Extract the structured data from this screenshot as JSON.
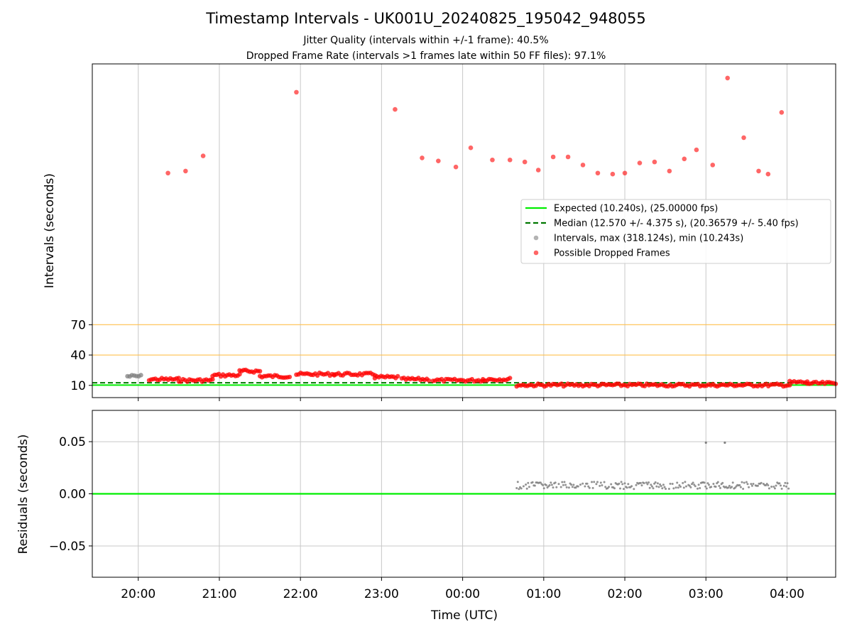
{
  "title": "Timestamp Intervals - UK001U_20240825_195042_948055",
  "subtitle_lines": [
    "Jitter Quality (intervals within +/-1 frame): 40.5%",
    "Dropped Frame Rate (intervals >1 frames late within 50 FF files): 97.1%"
  ],
  "colors": {
    "expected": "#00ee00",
    "median": "#007700",
    "intervals": "#808080",
    "dropped": "#ff0000",
    "threshold": "#ffc04d",
    "grid": "#c8c8c8"
  },
  "chart_data": [
    {
      "type": "scatter",
      "id": "intervals",
      "ylabel": "Intervals (seconds)",
      "yticks": [
        10,
        40,
        70
      ],
      "x_range": [
        "19:26",
        "04:36"
      ],
      "x_ticks": [
        "20:00",
        "21:00",
        "22:00",
        "23:00",
        "00:00",
        "01:00",
        "02:00",
        "03:00",
        "04:00"
      ],
      "grid": "vertical",
      "legend_position": "center-right",
      "legend": [
        {
          "name": "Expected (10.240s), (25.00000 fps)",
          "kind": "line",
          "color": "#00ee00"
        },
        {
          "name": "Median (12.570 +/- 4.375 s), (20.36579 +/- 5.40 fps)",
          "kind": "dashed",
          "color": "#007700"
        },
        {
          "name": "Intervals, max (318.124s), min (10.243s)",
          "kind": "dot",
          "color": "#808080"
        },
        {
          "name": "Possible Dropped Frames",
          "kind": "dot",
          "color": "#ff0000"
        }
      ],
      "reference_lines": {
        "expected": 10.24,
        "median": 12.57,
        "thresholds": [
          40,
          70
        ]
      },
      "high_points": [
        {
          "time": "20:22",
          "value": 220
        },
        {
          "time": "20:35",
          "value": 222
        },
        {
          "time": "20:48",
          "value": 237
        },
        {
          "time": "21:57",
          "value": 300
        },
        {
          "time": "23:10",
          "value": 283
        },
        {
          "time": "23:30",
          "value": 235
        },
        {
          "time": "23:42",
          "value": 232
        },
        {
          "time": "23:55",
          "value": 226
        },
        {
          "time": "00:06",
          "value": 245
        },
        {
          "time": "00:22",
          "value": 233
        },
        {
          "time": "00:35",
          "value": 233
        },
        {
          "time": "00:46",
          "value": 231
        },
        {
          "time": "00:56",
          "value": 223
        },
        {
          "time": "01:07",
          "value": 236
        },
        {
          "time": "01:18",
          "value": 236
        },
        {
          "time": "01:29",
          "value": 228
        },
        {
          "time": "01:40",
          "value": 220
        },
        {
          "time": "01:51",
          "value": 219
        },
        {
          "time": "02:00",
          "value": 220
        },
        {
          "time": "02:11",
          "value": 230
        },
        {
          "time": "02:22",
          "value": 231
        },
        {
          "time": "02:33",
          "value": 222
        },
        {
          "time": "02:44",
          "value": 234
        },
        {
          "time": "02:53",
          "value": 243
        },
        {
          "time": "03:05",
          "value": 228
        },
        {
          "time": "03:16",
          "value": 314
        },
        {
          "time": "03:28",
          "value": 255
        },
        {
          "time": "03:39",
          "value": 222
        },
        {
          "time": "03:46",
          "value": 219
        },
        {
          "time": "03:56",
          "value": 280
        }
      ],
      "dense_segments": [
        {
          "start": "19:52",
          "end": "20:02",
          "value": 19,
          "color": "#808080"
        },
        {
          "start": "20:08",
          "end": "20:30",
          "value": 16,
          "color": "#ff0000"
        },
        {
          "start": "20:30",
          "end": "20:55",
          "value": 15,
          "color": "#ff0000"
        },
        {
          "start": "20:55",
          "end": "21:15",
          "value": 20,
          "color": "#ff0000"
        },
        {
          "start": "21:15",
          "end": "21:30",
          "value": 24,
          "color": "#ff0000"
        },
        {
          "start": "21:30",
          "end": "21:52",
          "value": 19,
          "color": "#ff0000"
        },
        {
          "start": "21:57",
          "end": "22:25",
          "value": 21,
          "color": "#ff0000"
        },
        {
          "start": "22:25",
          "end": "22:55",
          "value": 21,
          "color": "#ff0000"
        },
        {
          "start": "22:55",
          "end": "23:12",
          "value": 18,
          "color": "#ff0000"
        },
        {
          "start": "23:15",
          "end": "23:35",
          "value": 16,
          "color": "#ff0000"
        },
        {
          "start": "23:38",
          "end": "00:15",
          "value": 15,
          "color": "#ff0000"
        },
        {
          "start": "00:15",
          "end": "00:35",
          "value": 16,
          "color": "#ff0000"
        },
        {
          "start": "00:40",
          "end": "04:02",
          "value": 10.3,
          "color": "#ff0000"
        },
        {
          "start": "04:02",
          "end": "04:15",
          "value": 13,
          "color": "#ff0000"
        },
        {
          "start": "04:15",
          "end": "04:36",
          "value": 12,
          "color": "#ff0000"
        }
      ]
    },
    {
      "type": "scatter",
      "id": "residuals",
      "ylabel": "Residuals (seconds)",
      "xlabel": "Time (UTC)",
      "ylim": [
        -0.08,
        0.08
      ],
      "yticks": [
        "0.05",
        "0.00",
        "−0.05"
      ],
      "ytick_values": [
        0.05,
        0.0,
        -0.05
      ],
      "x_range": [
        "19:26",
        "04:36"
      ],
      "x_ticks": [
        "20:00",
        "21:00",
        "22:00",
        "23:00",
        "00:00",
        "01:00",
        "02:00",
        "03:00",
        "04:00"
      ],
      "grid": "both",
      "zero_line_color": "#00ee00",
      "dense_segments": [
        {
          "start": "00:40",
          "end": "04:02",
          "value": 0.008,
          "color": "#808080"
        }
      ],
      "points": [
        {
          "time": "03:00",
          "value": 0.049
        },
        {
          "time": "03:14",
          "value": 0.049
        }
      ]
    }
  ]
}
